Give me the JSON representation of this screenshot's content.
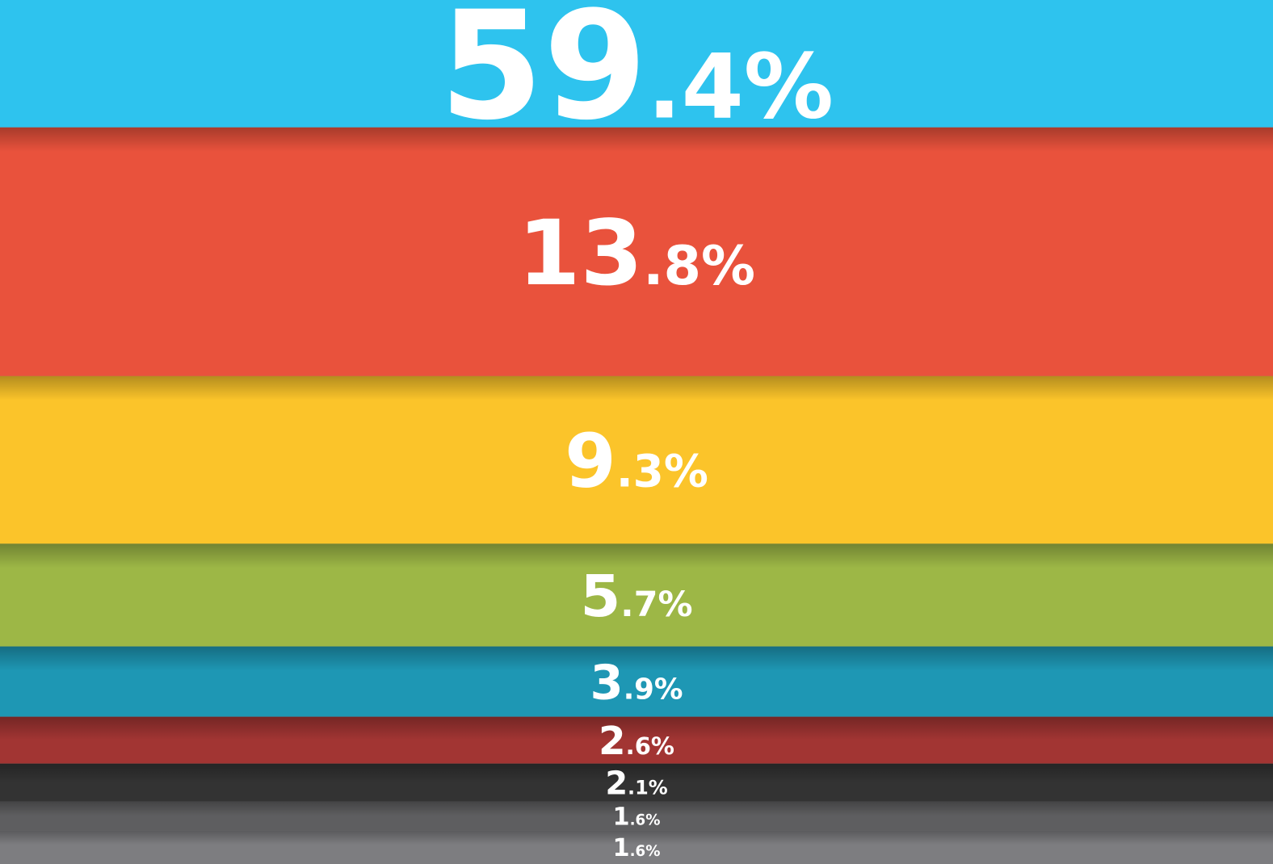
{
  "chart_data": {
    "type": "bar",
    "values": [
      59.4,
      13.8,
      9.3,
      5.7,
      3.9,
      2.6,
      2.1,
      1.6,
      1.6
    ],
    "value_labels": [
      "59.4%",
      "13.8%",
      "9.3%",
      "5.7%",
      "3.9%",
      "2.6%",
      "2.1%",
      "1.6%",
      "1.6%"
    ],
    "colors": [
      "#2ec3ee",
      "#e9523c",
      "#fbc42a",
      "#9db746",
      "#1e97b4",
      "#a23533",
      "#333333",
      "#5e5e60",
      "#7d7d80"
    ]
  }
}
